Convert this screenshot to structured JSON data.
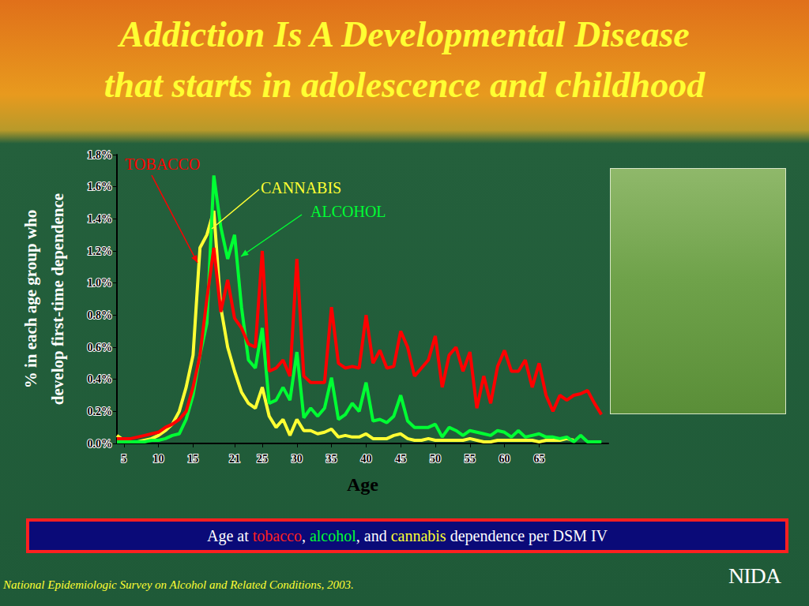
{
  "slide": {
    "title": [
      "Addiction Is A Developmental Disease",
      "that starts in adolescence and childhood"
    ],
    "caption": [
      {
        "text": "Age at ",
        "color": "#ffffff"
      },
      {
        "text": "tobacco",
        "color": "#ff2020"
      },
      {
        "text": ", ",
        "color": "#ffffff"
      },
      {
        "text": "alcohol",
        "color": "#00ff33"
      },
      {
        "text": ", and ",
        "color": "#ffffff"
      },
      {
        "text": "cannabis",
        "color": "#ffff33"
      },
      {
        "text": " dependence per DSM IV",
        "color": "#ffffff"
      }
    ],
    "source": "National Epidemiologic Survey on Alcohol and Related Conditions, 2003.",
    "logo": "NIDA"
  },
  "chart_data": {
    "type": "line",
    "xlabel": "Age",
    "ylabel": [
      "% in each age group who",
      "develop first-time dependence"
    ],
    "x": [
      4,
      5,
      6,
      7,
      8,
      9,
      10,
      11,
      12,
      13,
      14,
      15,
      16,
      17,
      18,
      19,
      20,
      21,
      22,
      23,
      24,
      25,
      26,
      27,
      28,
      29,
      30,
      31,
      32,
      33,
      34,
      35,
      36,
      37,
      38,
      39,
      40,
      41,
      42,
      43,
      44,
      45,
      46,
      47,
      48,
      49,
      50,
      51,
      52,
      53,
      54,
      55,
      56,
      57,
      58,
      59,
      60,
      61,
      62,
      63,
      64,
      65,
      66,
      67,
      68,
      69,
      70,
      71,
      72,
      73,
      74
    ],
    "series": [
      {
        "name": "TOBACCO",
        "color": "#ff0000",
        "values": [
          0.03,
          0.03,
          0.03,
          0.04,
          0.05,
          0.06,
          0.07,
          0.1,
          0.12,
          0.15,
          0.2,
          0.35,
          0.55,
          0.9,
          1.22,
          0.82,
          1.02,
          0.78,
          0.72,
          0.62,
          0.6,
          1.2,
          0.45,
          0.47,
          0.52,
          0.42,
          1.15,
          0.42,
          0.38,
          0.38,
          0.38,
          0.85,
          0.5,
          0.47,
          0.48,
          0.47,
          0.8,
          0.5,
          0.58,
          0.47,
          0.48,
          0.7,
          0.6,
          0.42,
          0.47,
          0.52,
          0.67,
          0.35,
          0.55,
          0.6,
          0.45,
          0.57,
          0.22,
          0.42,
          0.25,
          0.48,
          0.58,
          0.45,
          0.45,
          0.52,
          0.35,
          0.5,
          0.3,
          0.2,
          0.3,
          0.27,
          0.3,
          0.31,
          0.33,
          0.25,
          0.18
        ]
      },
      {
        "name": "CANNABIS",
        "color": "#ffff33",
        "values": [
          0.05,
          0.02,
          0.01,
          0.01,
          0.02,
          0.03,
          0.05,
          0.08,
          0.12,
          0.2,
          0.35,
          0.55,
          1.22,
          1.3,
          1.45,
          0.85,
          0.6,
          0.45,
          0.32,
          0.25,
          0.22,
          0.35,
          0.17,
          0.1,
          0.15,
          0.05,
          0.15,
          0.08,
          0.08,
          0.06,
          0.07,
          0.09,
          0.04,
          0.05,
          0.04,
          0.04,
          0.06,
          0.03,
          0.03,
          0.03,
          0.05,
          0.06,
          0.03,
          0.02,
          0.02,
          0.03,
          0.02,
          0.02,
          0.02,
          0.02,
          0.02,
          0.03,
          0.02,
          0.01,
          0.01,
          0.02,
          0.02,
          0.02,
          0.02,
          0.02,
          0.02,
          0.01,
          0.02,
          0.02,
          0.02,
          0.03,
          0.02,
          null,
          null,
          null,
          null
        ]
      },
      {
        "name": "ALCOHOL",
        "color": "#00ff33",
        "values": [
          0.01,
          0.01,
          0.01,
          0.01,
          0.01,
          0.02,
          0.02,
          0.03,
          0.05,
          0.06,
          0.15,
          0.3,
          0.55,
          0.75,
          1.67,
          1.35,
          1.15,
          1.3,
          0.85,
          0.52,
          0.47,
          0.72,
          0.25,
          0.27,
          0.35,
          0.27,
          0.57,
          0.16,
          0.22,
          0.17,
          0.22,
          0.41,
          0.15,
          0.18,
          0.25,
          0.2,
          0.38,
          0.14,
          0.15,
          0.13,
          0.17,
          0.3,
          0.14,
          0.1,
          0.1,
          0.1,
          0.12,
          0.04,
          0.1,
          0.08,
          0.05,
          0.08,
          0.07,
          0.06,
          0.05,
          0.08,
          0.07,
          0.04,
          0.08,
          0.04,
          0.05,
          0.06,
          0.04,
          0.04,
          0.03,
          0.04,
          0.01,
          0.05,
          0.01,
          0.01,
          0.01
        ]
      }
    ],
    "xlim": [
      4,
      75
    ],
    "xticks": [
      5,
      10,
      15,
      21,
      25,
      30,
      35,
      40,
      45,
      50,
      55,
      60,
      65
    ],
    "ylim": [
      0,
      1.8
    ],
    "yticks": [
      {
        "value": 0,
        "label": "0.0%"
      },
      {
        "value": 0.2,
        "label": "0.2%"
      },
      {
        "value": 0.4,
        "label": "0.4%"
      },
      {
        "value": 0.6,
        "label": "0.6%"
      },
      {
        "value": 0.8,
        "label": "0.8%"
      },
      {
        "value": 1.0,
        "label": "1.0%"
      },
      {
        "value": 1.2,
        "label": "1.2%"
      },
      {
        "value": 1.4,
        "label": "1.4%"
      },
      {
        "value": 1.6,
        "label": "1.6%"
      },
      {
        "value": 1.8,
        "label": "1.8%"
      }
    ],
    "grid": false
  }
}
